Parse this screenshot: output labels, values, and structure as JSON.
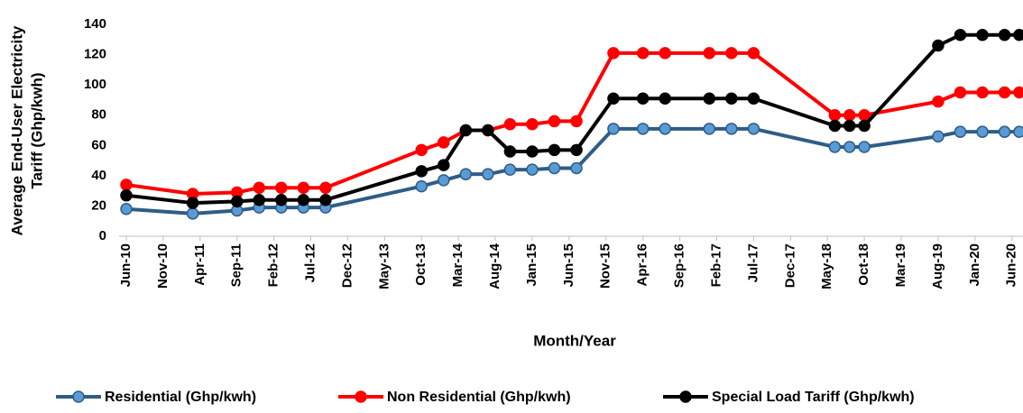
{
  "chart_data": {
    "type": "line",
    "y_label": [
      "Average End-User Electricity",
      "Tariff (Ghp/kwh)"
    ],
    "x_label": "Month/Year",
    "x": [
      "2010-06",
      "2011-03",
      "2011-09",
      "2011-12",
      "2012-03",
      "2012-06",
      "2012-09",
      "2013-10",
      "2014-01",
      "2014-04",
      "2014-07",
      "2014-10",
      "2015-01",
      "2015-04",
      "2015-07",
      "2015-12",
      "2016-04",
      "2016-07",
      "2017-01",
      "2017-04",
      "2017-07",
      "2018-06",
      "2018-08",
      "2018-10",
      "2019-08",
      "2019-11",
      "2020-02",
      "2020-05",
      "2020-07"
    ],
    "xlim": [
      "2010-06",
      "2020-07"
    ],
    "xticks": [
      {
        "value": "2010-06",
        "label": "Jun-10"
      },
      {
        "value": "2010-11",
        "label": "Nov-10"
      },
      {
        "value": "2011-04",
        "label": "Apr-11"
      },
      {
        "value": "2011-09",
        "label": "Sep-11"
      },
      {
        "value": "2012-02",
        "label": "Feb-12"
      },
      {
        "value": "2012-07",
        "label": "Jul-12"
      },
      {
        "value": "2012-12",
        "label": "Dec-12"
      },
      {
        "value": "2013-05",
        "label": "May-13"
      },
      {
        "value": "2013-10",
        "label": "Oct-13"
      },
      {
        "value": "2014-03",
        "label": "Mar-14"
      },
      {
        "value": "2014-08",
        "label": "Aug-14"
      },
      {
        "value": "2015-01",
        "label": "Jan-15"
      },
      {
        "value": "2015-06",
        "label": "Jun-15"
      },
      {
        "value": "2015-11",
        "label": "Nov-15"
      },
      {
        "value": "2016-04",
        "label": "Apr-16"
      },
      {
        "value": "2016-09",
        "label": "Sep-16"
      },
      {
        "value": "2017-02",
        "label": "Feb-17"
      },
      {
        "value": "2017-07",
        "label": "Jul-17"
      },
      {
        "value": "2017-12",
        "label": "Dec-17"
      },
      {
        "value": "2018-05",
        "label": "May-18"
      },
      {
        "value": "2018-10",
        "label": "Oct-18"
      },
      {
        "value": "2019-03",
        "label": "Mar-19"
      },
      {
        "value": "2019-08",
        "label": "Aug-19"
      },
      {
        "value": "2020-01",
        "label": "Jan-20"
      },
      {
        "value": "2020-06",
        "label": "Jun-20"
      }
    ],
    "ylim": [
      0,
      140
    ],
    "yticks": [
      0,
      20,
      40,
      60,
      80,
      100,
      120,
      140
    ],
    "grid": false,
    "legend": "bottom",
    "series": [
      {
        "name": "Residential (Ghp/kwh)",
        "color": "#2e5d87",
        "marker_color": "#5b9bd5",
        "values": [
          18,
          15,
          17,
          19,
          19,
          19,
          19,
          33,
          37,
          41,
          41,
          44,
          44,
          45,
          45,
          71,
          71,
          71,
          71,
          71,
          71,
          59,
          59,
          59,
          66,
          69,
          69,
          69,
          69
        ]
      },
      {
        "name": "Non Residential (Ghp/kwh)",
        "color": "#ff0000",
        "marker_color": "#ff0000",
        "values": [
          34,
          28,
          29,
          32,
          32,
          32,
          32,
          57,
          62,
          70,
          70,
          74,
          74,
          76,
          76,
          121,
          121,
          121,
          121,
          121,
          121,
          80,
          80,
          80,
          89,
          95,
          95,
          95,
          95
        ]
      },
      {
        "name": "Special Load Tariff (Ghp/kwh)",
        "color": "#000000",
        "marker_color": "#000000",
        "values": [
          27,
          22,
          23,
          24,
          24,
          24,
          24,
          43,
          47,
          70,
          70,
          56,
          56,
          57,
          57,
          91,
          91,
          91,
          91,
          91,
          91,
          73,
          73,
          73,
          126,
          133,
          133,
          133,
          133
        ]
      }
    ]
  }
}
